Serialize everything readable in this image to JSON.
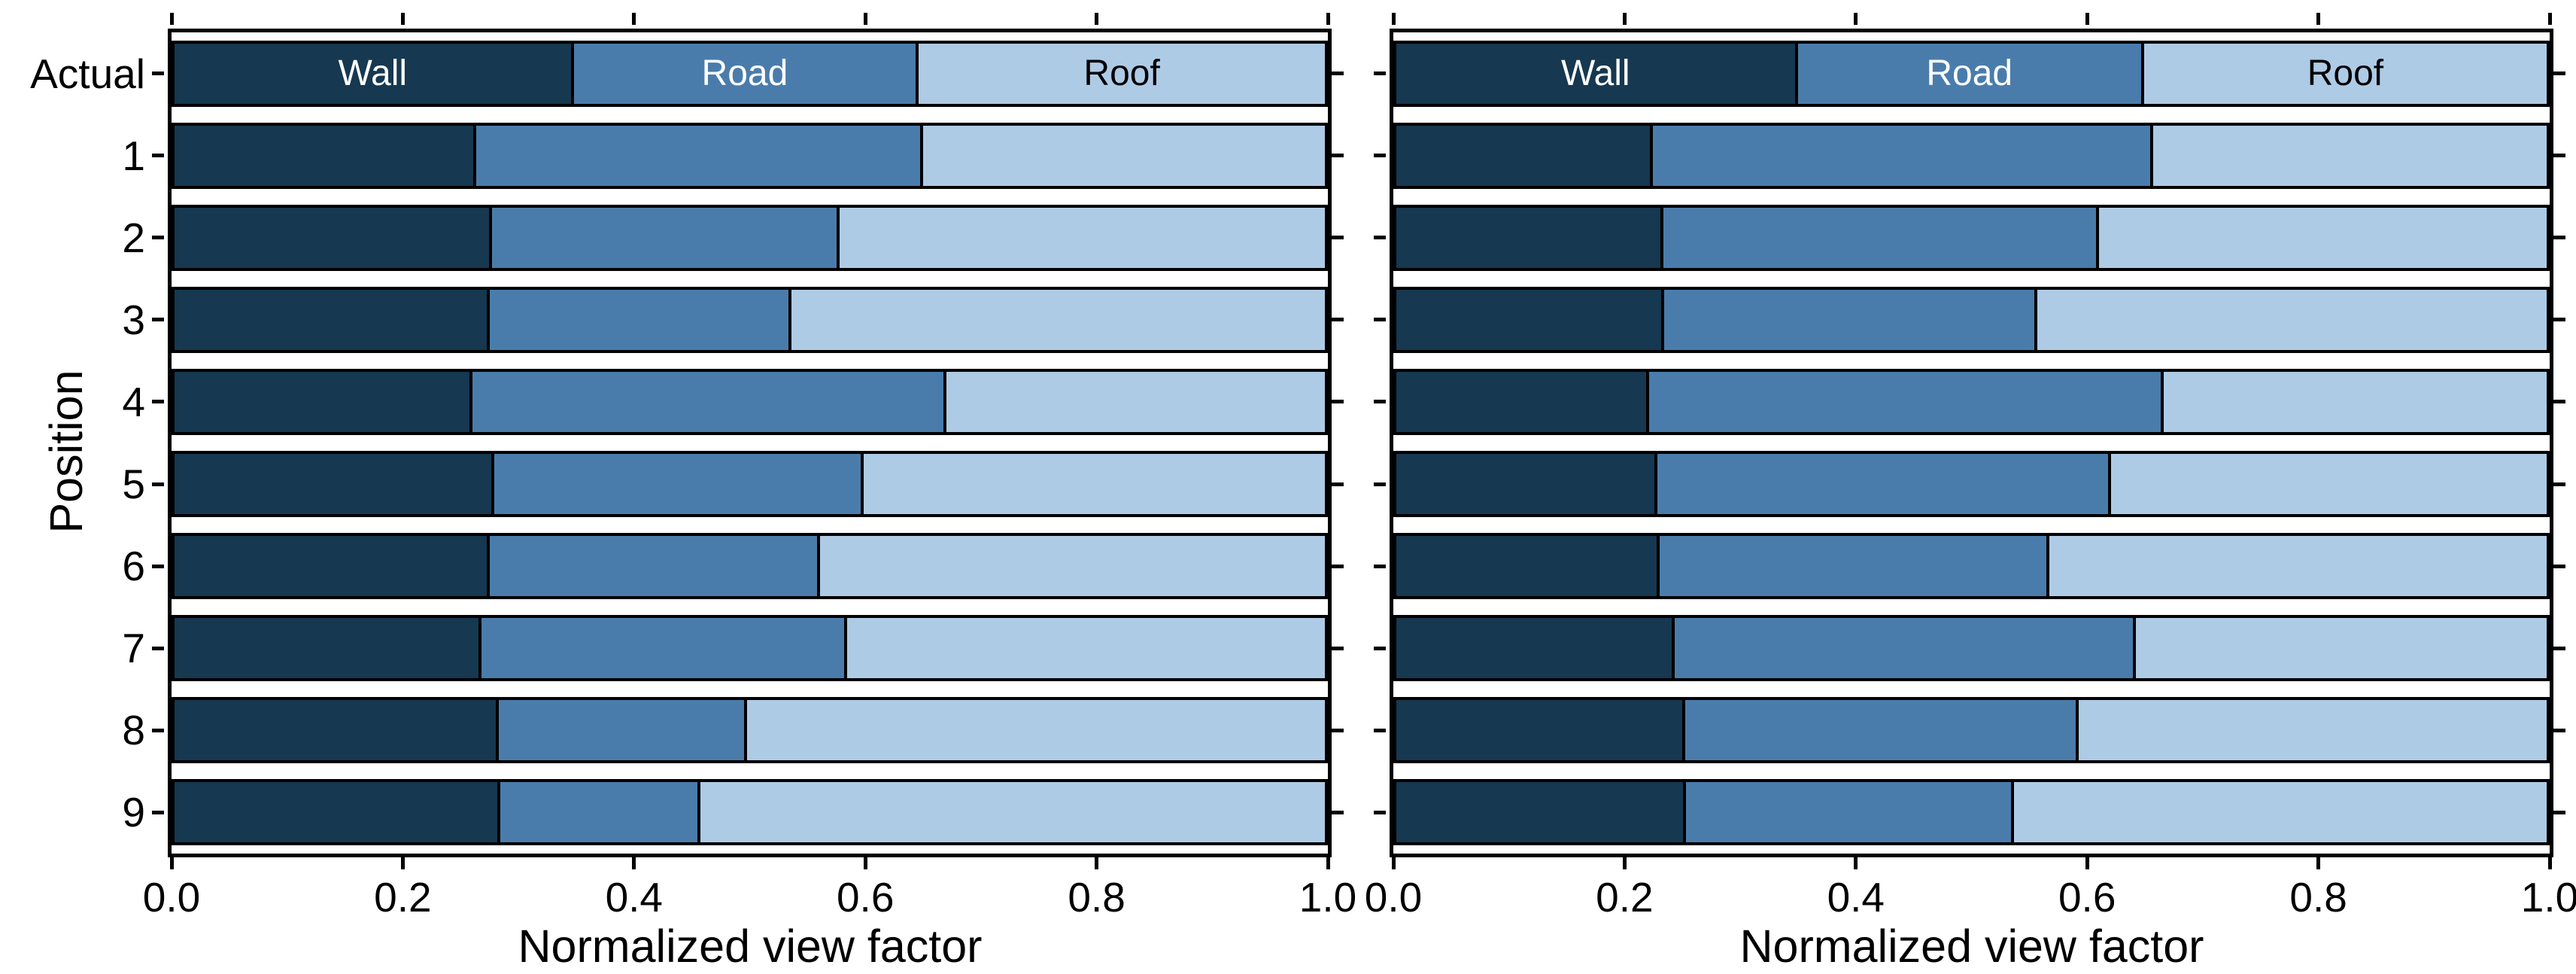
{
  "figure": {
    "xlabel": "Normalized view factor",
    "ylabel": "Position",
    "x_tick_labels": [
      "0.0",
      "0.2",
      "0.4",
      "0.6",
      "0.8",
      "1.0"
    ],
    "y_tick_labels": [
      "Actual",
      "1",
      "2",
      "3",
      "4",
      "5",
      "6",
      "7",
      "8",
      "9"
    ],
    "series_names": [
      "Wall",
      "Road",
      "Roof"
    ],
    "colors": {
      "Wall": "#163850",
      "Road": "#4A7CAB",
      "Roof": "#AECBE6"
    },
    "segment_label_text_colors": {
      "Wall": "#FFFFFF",
      "Road": "#FFFFFF",
      "Roof": "#000000"
    }
  },
  "chart_data": [
    {
      "type": "bar",
      "orientation": "horizontal",
      "stacked": true,
      "panel": "left",
      "title": "",
      "xlabel": "Normalized view factor",
      "ylabel": "Position",
      "xlim": [
        0,
        1
      ],
      "grid": false,
      "legend_position": "inline-first-bar",
      "categories": [
        "Actual",
        "1",
        "2",
        "3",
        "4",
        "5",
        "6",
        "7",
        "8",
        "9"
      ],
      "series": [
        {
          "name": "Wall",
          "color": "#163850",
          "values": [
            0.347,
            0.262,
            0.276,
            0.274,
            0.259,
            0.278,
            0.274,
            0.267,
            0.282,
            0.283
          ]
        },
        {
          "name": "Road",
          "color": "#4A7CAB",
          "values": [
            0.3,
            0.389,
            0.302,
            0.262,
            0.412,
            0.321,
            0.287,
            0.318,
            0.216,
            0.174
          ]
        },
        {
          "name": "Roof",
          "color": "#AECBE6",
          "values": [
            0.353,
            0.349,
            0.422,
            0.464,
            0.329,
            0.401,
            0.439,
            0.415,
            0.502,
            0.543
          ]
        }
      ]
    },
    {
      "type": "bar",
      "orientation": "horizontal",
      "stacked": true,
      "panel": "right",
      "title": "",
      "xlabel": "Normalized view factor",
      "ylabel": "",
      "xlim": [
        0,
        1
      ],
      "grid": false,
      "legend_position": "inline-first-bar",
      "categories": [
        "Actual",
        "1",
        "2",
        "3",
        "4",
        "5",
        "6",
        "7",
        "8",
        "9"
      ],
      "series": [
        {
          "name": "Wall",
          "color": "#163850",
          "values": [
            0.349,
            0.223,
            0.232,
            0.233,
            0.22,
            0.227,
            0.229,
            0.242,
            0.251,
            0.252
          ]
        },
        {
          "name": "Road",
          "color": "#4A7CAB",
          "values": [
            0.301,
            0.435,
            0.379,
            0.324,
            0.447,
            0.394,
            0.339,
            0.401,
            0.342,
            0.285
          ]
        },
        {
          "name": "Roof",
          "color": "#AECBE6",
          "values": [
            0.35,
            0.342,
            0.389,
            0.443,
            0.333,
            0.379,
            0.432,
            0.357,
            0.407,
            0.463
          ]
        }
      ]
    }
  ]
}
